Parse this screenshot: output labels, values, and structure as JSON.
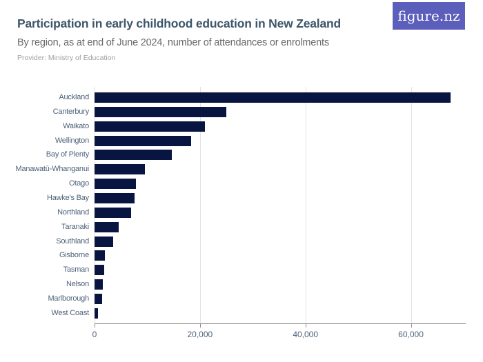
{
  "header": {
    "title": "Participation in early childhood education in New Zealand",
    "subtitle": "By region, as at end of June 2024, number of attendances or enrolments",
    "provider": "Provider: Ministry of Education"
  },
  "logo": {
    "text": "figure.nz",
    "bg_color": "#5b5fbb",
    "text_color": "#ffffff"
  },
  "colors": {
    "bar": "#081540",
    "title": "#3d5669",
    "subtitle": "#696969",
    "provider": "#a0a0a0",
    "axis_text": "#4d6278",
    "gridline": "#e2e2e2",
    "axis_line": "#8c8c8c"
  },
  "chart_data": {
    "type": "bar",
    "orientation": "horizontal",
    "title": "Participation in early childhood education in New Zealand",
    "subtitle": "By region, as at end of June 2024, number of attendances or enrolments",
    "xlabel": "",
    "ylabel": "",
    "categories": [
      "Auckland",
      "Canterbury",
      "Waikato",
      "Wellington",
      "Bay of Plenty",
      "Manawatū-Whanganui",
      "Otago",
      "Hawke's Bay",
      "Northland",
      "Taranaki",
      "Southland",
      "Gisborne",
      "Tasman",
      "Nelson",
      "Marlborough",
      "West Coast"
    ],
    "values": [
      67500,
      25000,
      21000,
      18300,
      14700,
      9500,
      7800,
      7600,
      6900,
      4600,
      3500,
      1900,
      1800,
      1600,
      1400,
      700
    ],
    "xlim": [
      0,
      70400
    ],
    "xticks": [
      {
        "value": 0,
        "label": "0"
      },
      {
        "value": 20000,
        "label": "20,000"
      },
      {
        "value": 40000,
        "label": "40,000"
      },
      {
        "value": 60000,
        "label": "60,000"
      }
    ],
    "grid": true,
    "legend": false
  }
}
